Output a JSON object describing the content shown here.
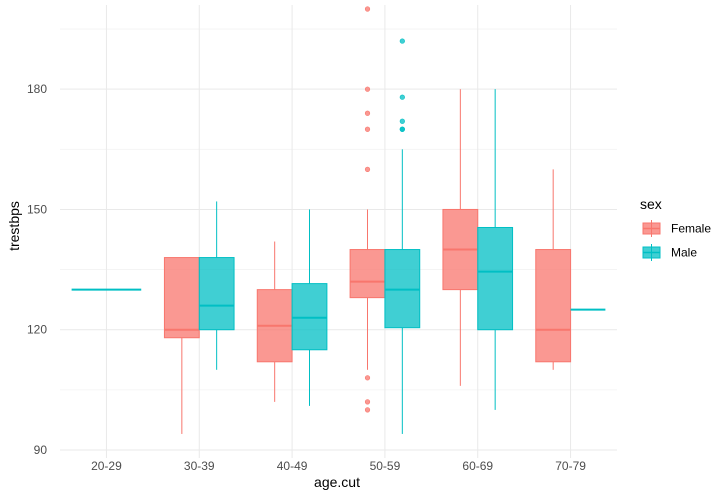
{
  "chart_data": {
    "type": "boxplot",
    "title": "",
    "xlabel": "age.cut",
    "ylabel": "trestbps",
    "categories": [
      "20-29",
      "30-39",
      "40-49",
      "50-59",
      "60-69",
      "70-79"
    ],
    "y_ticks": [
      90,
      120,
      150,
      180
    ],
    "ylim": [
      88,
      201
    ],
    "grid": true,
    "legend": {
      "title": "sex",
      "position": "right",
      "entries": [
        "Female",
        "Male"
      ]
    },
    "series": [
      {
        "name": "Female",
        "color": "#F8766D",
        "boxes": [
          null,
          {
            "category": "30-39",
            "min": 94,
            "q1": 118,
            "median": 120,
            "q3": 138,
            "max": 138,
            "outliers": []
          },
          {
            "category": "40-49",
            "min": 102,
            "q1": 112,
            "median": 121,
            "q3": 130,
            "max": 142,
            "outliers": []
          },
          {
            "category": "50-59",
            "min": 110,
            "q1": 128,
            "median": 132,
            "q3": 140,
            "max": 150,
            "outliers": [
              100,
              102,
              108,
              160,
              170,
              174,
              180,
              200
            ]
          },
          {
            "category": "60-69",
            "min": 106,
            "q1": 130,
            "median": 140,
            "q3": 150,
            "max": 180,
            "outliers": []
          },
          {
            "category": "70-79",
            "min": 110,
            "q1": 112,
            "median": 120,
            "q3": 140,
            "max": 160,
            "outliers": []
          }
        ]
      },
      {
        "name": "Male",
        "color": "#00BFC4",
        "boxes": [
          {
            "category": "20-29",
            "min": 130,
            "q1": 130,
            "median": 130,
            "q3": 130,
            "max": 130,
            "outliers": [],
            "single": true
          },
          {
            "category": "30-39",
            "min": 110,
            "q1": 120,
            "median": 126,
            "q3": 138,
            "max": 152,
            "outliers": []
          },
          {
            "category": "40-49",
            "min": 101,
            "q1": 115,
            "median": 123,
            "q3": 131.5,
            "max": 150,
            "outliers": []
          },
          {
            "category": "50-59",
            "min": 94,
            "q1": 120.5,
            "median": 130,
            "q3": 140,
            "max": 165,
            "outliers": [
              170,
              170,
              172,
              178,
              192
            ]
          },
          {
            "category": "60-69",
            "min": 100,
            "q1": 120,
            "median": 134.5,
            "q3": 145.5,
            "max": 180,
            "outliers": []
          },
          {
            "category": "70-79",
            "min": 125,
            "q1": 125,
            "median": 125,
            "q3": 125,
            "max": 125,
            "outliers": [],
            "single": true
          }
        ]
      }
    ]
  }
}
